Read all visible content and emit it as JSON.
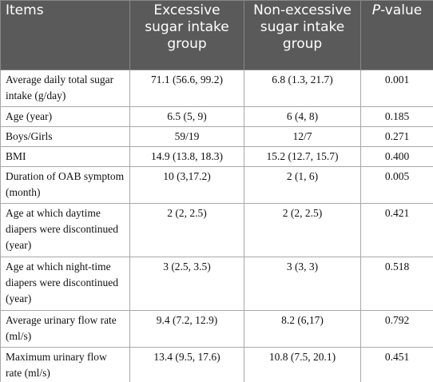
{
  "header": {
    "columns": [
      "Items",
      "Excessive sugar intake group",
      "Non-excessive sugar intake group",
      {
        "italic": "P",
        "rest": "-value"
      }
    ]
  },
  "table": {
    "rows": [
      [
        "Average daily total sugar intake (g/day)",
        "71.1 (56.6, 99.2)",
        "6.8 (1.3, 21.7)",
        "0.001"
      ],
      [
        "Age (year)",
        "6.5 (5, 9)",
        "6 (4, 8)",
        "0.185"
      ],
      [
        "Boys/Girls",
        "59/19",
        "12/7",
        "0.271"
      ],
      [
        "BMI",
        "14.9 (13.8, 18.3)",
        "15.2 (12.7, 15.7)",
        "0.400"
      ],
      [
        "Duration of OAB symptom (month)",
        "10 (3,17.2)",
        "2 (1, 6)",
        "0.005"
      ],
      [
        "Age at which daytime diapers were discontinued (year)",
        "2 (2, 2.5)",
        "2 (2, 2.5)",
        "0.421"
      ],
      [
        "Age at which night-time diapers were discontinued (year)",
        "3 (2.5, 3.5)",
        "3 (3, 3)",
        "0.518"
      ],
      [
        "Average urinary flow rate (ml/s)",
        "9.4 (7.2, 12.9)",
        "8.2 (6,17)",
        "0.792"
      ],
      [
        "Maximum urinary flow rate (ml/s)",
        "13.4 (9.5, 17.6)",
        "10.8 (7.5, 20.1)",
        "0.451"
      ]
    ]
  }
}
